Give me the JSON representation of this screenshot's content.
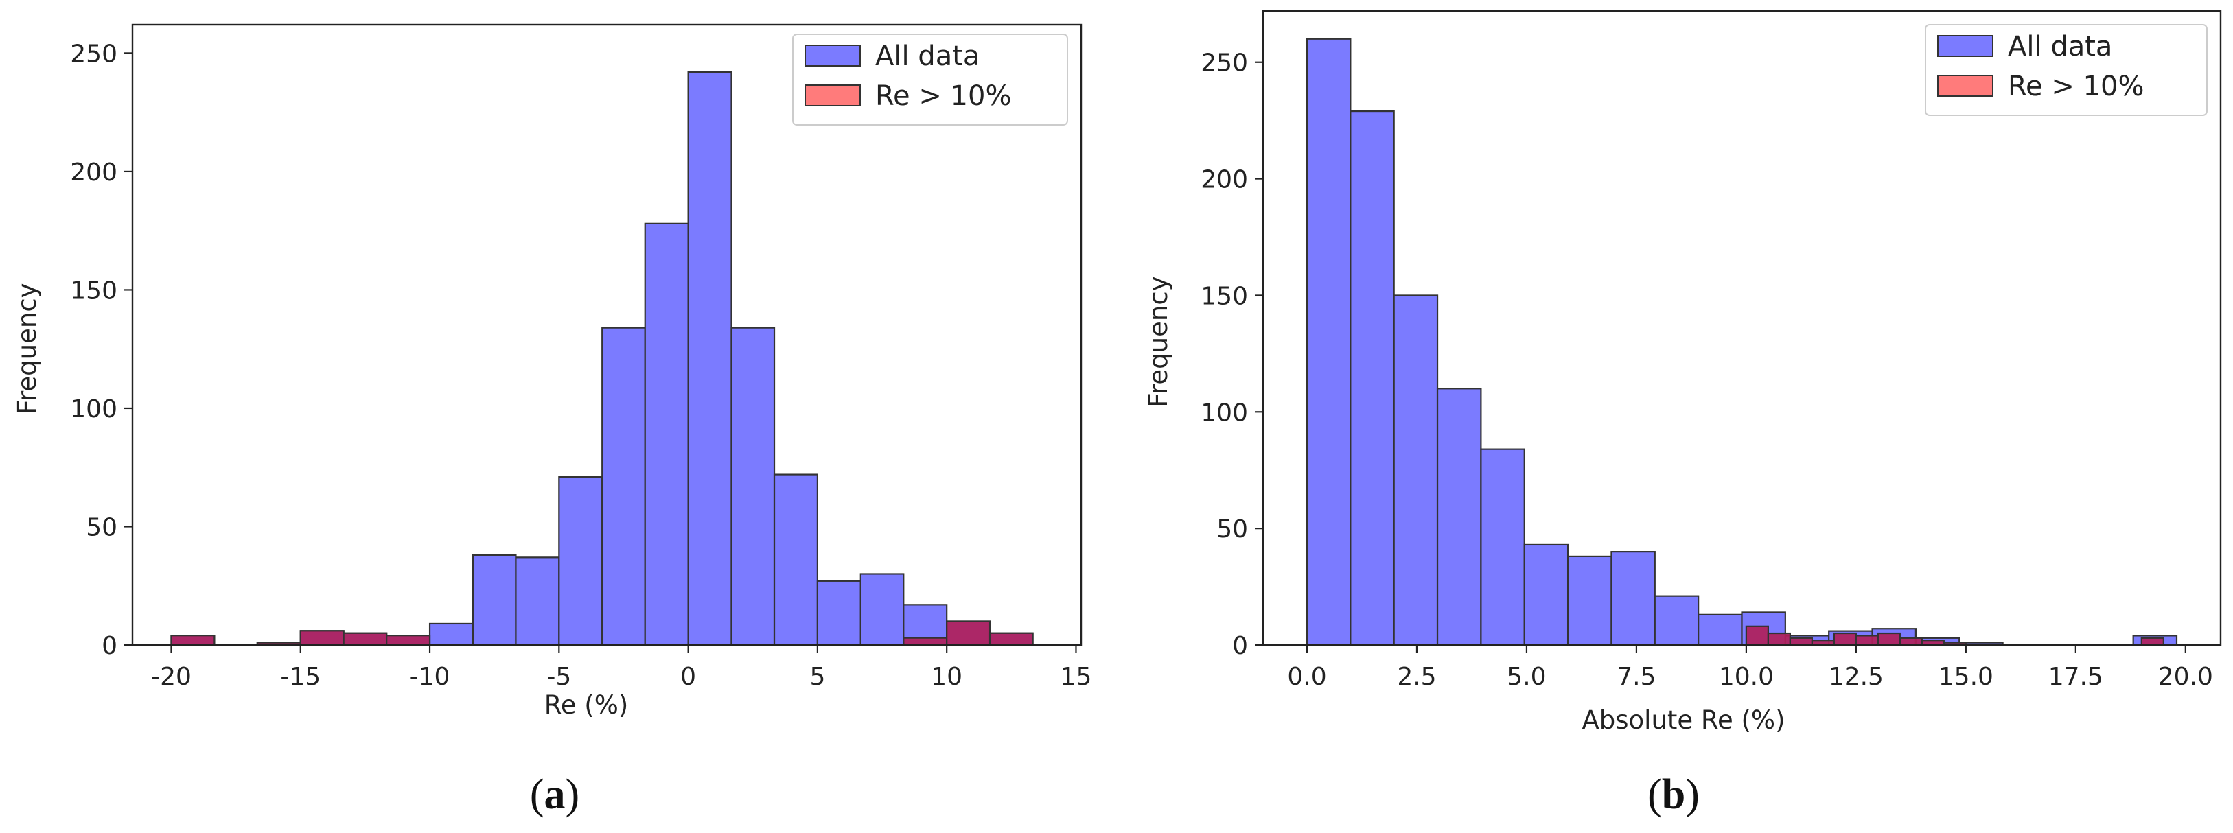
{
  "colors": {
    "all_data": "#7b7bff",
    "re_gt_10": "#b0205a",
    "legend_red": "#ff7b7b",
    "edge": "#333333"
  },
  "chart_data": [
    {
      "id": "a",
      "type": "bar",
      "caption": {
        "open": "(",
        "letter": "a",
        "close": ")"
      },
      "xlabel": "Re (%)",
      "ylabel": "Frequency",
      "xlim": [
        -21.5,
        15.2
      ],
      "ylim": [
        0,
        262
      ],
      "xticks": [
        -20,
        -15,
        -10,
        -5,
        0,
        5,
        10,
        15
      ],
      "yticks": [
        0,
        50,
        100,
        150,
        200,
        250
      ],
      "legend": {
        "position": "top-right",
        "entries": [
          "All data",
          "Re > 10%"
        ]
      },
      "series": [
        {
          "name": "All data",
          "bins": [
            {
              "x0": -20,
              "x1": -18.33,
              "value": 4
            },
            {
              "x0": -16.67,
              "x1": -15,
              "value": 1
            },
            {
              "x0": -15,
              "x1": -13.33,
              "value": 6
            },
            {
              "x0": -13.33,
              "x1": -11.67,
              "value": 5
            },
            {
              "x0": -11.67,
              "x1": -10,
              "value": 4
            },
            {
              "x0": -10,
              "x1": -8.33,
              "value": 9
            },
            {
              "x0": -8.33,
              "x1": -6.67,
              "value": 38
            },
            {
              "x0": -6.67,
              "x1": -5,
              "value": 37
            },
            {
              "x0": -5,
              "x1": -3.33,
              "value": 71
            },
            {
              "x0": -3.33,
              "x1": -1.67,
              "value": 134
            },
            {
              "x0": -1.67,
              "x1": 0,
              "value": 178
            },
            {
              "x0": 0,
              "x1": 1.67,
              "value": 242
            },
            {
              "x0": 1.67,
              "x1": 3.33,
              "value": 134
            },
            {
              "x0": 3.33,
              "x1": 5,
              "value": 72
            },
            {
              "x0": 5,
              "x1": 6.67,
              "value": 27
            },
            {
              "x0": 6.67,
              "x1": 8.33,
              "value": 30
            },
            {
              "x0": 8.33,
              "x1": 10,
              "value": 17
            },
            {
              "x0": 10,
              "x1": 11.67,
              "value": 10
            },
            {
              "x0": 11.67,
              "x1": 13.33,
              "value": 5
            }
          ]
        },
        {
          "name": "Re > 10%",
          "bins": [
            {
              "x0": -20,
              "x1": -18.33,
              "value": 4
            },
            {
              "x0": -16.67,
              "x1": -15,
              "value": 1
            },
            {
              "x0": -15,
              "x1": -13.33,
              "value": 6
            },
            {
              "x0": -13.33,
              "x1": -11.67,
              "value": 5
            },
            {
              "x0": -11.67,
              "x1": -10,
              "value": 4
            },
            {
              "x0": 8.33,
              "x1": 10,
              "value": 3
            },
            {
              "x0": 10,
              "x1": 11.67,
              "value": 10
            },
            {
              "x0": 11.67,
              "x1": 13.33,
              "value": 5
            }
          ]
        }
      ]
    },
    {
      "id": "b",
      "type": "bar",
      "caption": {
        "open": "(",
        "letter": "b",
        "close": ")"
      },
      "xlabel": "Absolute Re (%)",
      "ylabel": "Frequency",
      "xlim": [
        -1.0,
        20.8
      ],
      "ylim": [
        0,
        272
      ],
      "xticks": [
        "0.0",
        "2.5",
        "5.0",
        "7.5",
        "10.0",
        "12.5",
        "15.0",
        "17.5",
        "20.0"
      ],
      "xtick_values": [
        0,
        2.5,
        5,
        7.5,
        10,
        12.5,
        15,
        17.5,
        20
      ],
      "yticks": [
        0,
        50,
        100,
        150,
        200,
        250
      ],
      "legend": {
        "position": "top-right",
        "entries": [
          "All data",
          "Re > 10%"
        ]
      },
      "series": [
        {
          "name": "All data",
          "bins": [
            {
              "x0": 0,
              "x1": 0.99,
              "value": 260
            },
            {
              "x0": 0.99,
              "x1": 1.98,
              "value": 229
            },
            {
              "x0": 1.98,
              "x1": 2.97,
              "value": 150
            },
            {
              "x0": 2.97,
              "x1": 3.96,
              "value": 110
            },
            {
              "x0": 3.96,
              "x1": 4.95,
              "value": 84
            },
            {
              "x0": 4.95,
              "x1": 5.94,
              "value": 43
            },
            {
              "x0": 5.94,
              "x1": 6.93,
              "value": 38
            },
            {
              "x0": 6.93,
              "x1": 7.92,
              "value": 40
            },
            {
              "x0": 7.92,
              "x1": 8.91,
              "value": 21
            },
            {
              "x0": 8.91,
              "x1": 9.9,
              "value": 13
            },
            {
              "x0": 9.9,
              "x1": 10.89,
              "value": 14
            },
            {
              "x0": 10.89,
              "x1": 11.88,
              "value": 4
            },
            {
              "x0": 11.88,
              "x1": 12.87,
              "value": 6
            },
            {
              "x0": 12.87,
              "x1": 13.86,
              "value": 7
            },
            {
              "x0": 13.86,
              "x1": 14.85,
              "value": 3
            },
            {
              "x0": 14.85,
              "x1": 15.84,
              "value": 1
            },
            {
              "x0": 18.81,
              "x1": 19.8,
              "value": 4
            }
          ]
        },
        {
          "name": "Re > 10%",
          "bins": [
            {
              "x0": 10.0,
              "x1": 10.5,
              "value": 8
            },
            {
              "x0": 10.5,
              "x1": 11.0,
              "value": 5
            },
            {
              "x0": 11.0,
              "x1": 11.5,
              "value": 3
            },
            {
              "x0": 11.5,
              "x1": 12.0,
              "value": 2
            },
            {
              "x0": 12.0,
              "x1": 12.5,
              "value": 5
            },
            {
              "x0": 12.5,
              "x1": 13.0,
              "value": 4
            },
            {
              "x0": 13.0,
              "x1": 13.5,
              "value": 5
            },
            {
              "x0": 13.5,
              "x1": 14.0,
              "value": 3
            },
            {
              "x0": 14.0,
              "x1": 14.5,
              "value": 2
            },
            {
              "x0": 14.5,
              "x1": 15.0,
              "value": 1
            },
            {
              "x0": 19.0,
              "x1": 19.5,
              "value": 3
            }
          ]
        }
      ]
    }
  ]
}
